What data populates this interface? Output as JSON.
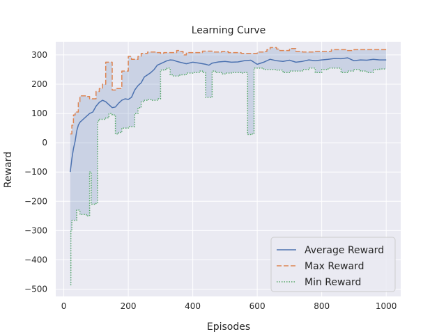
{
  "chart_data": {
    "type": "line",
    "title": "Learning Curve",
    "xlabel": "Episodes",
    "ylabel": "Reward",
    "xlim": [
      -25,
      1045
    ],
    "ylim": [
      -525,
      345
    ],
    "xticks": [
      0,
      200,
      400,
      600,
      800,
      1000
    ],
    "yticks": [
      -500,
      -400,
      -300,
      -200,
      -100,
      0,
      100,
      200,
      300
    ],
    "grid": true,
    "legend_position": "lower-right",
    "fill_between": {
      "series_low": "Min Reward",
      "series_high": "Max Reward",
      "color": "#4c72b0",
      "opacity": 0.2
    },
    "series": [
      {
        "name": "Average Reward",
        "color": "#4c72b0",
        "style": "solid",
        "x": [
          20,
          25,
          30,
          35,
          40,
          45,
          50,
          60,
          70,
          80,
          90,
          100,
          110,
          120,
          130,
          140,
          150,
          160,
          170,
          180,
          190,
          200,
          210,
          220,
          230,
          240,
          250,
          260,
          270,
          280,
          290,
          300,
          310,
          320,
          330,
          340,
          350,
          360,
          380,
          400,
          420,
          440,
          450,
          460,
          480,
          500,
          520,
          540,
          560,
          580,
          600,
          620,
          640,
          660,
          680,
          700,
          720,
          740,
          760,
          780,
          800,
          820,
          840,
          860,
          880,
          900,
          920,
          940,
          960,
          980,
          1000
        ],
        "values": [
          -100,
          -55,
          -20,
          5,
          40,
          60,
          70,
          80,
          90,
          100,
          105,
          125,
          138,
          145,
          140,
          130,
          120,
          122,
          135,
          145,
          150,
          148,
          155,
          180,
          195,
          205,
          225,
          232,
          240,
          250,
          265,
          270,
          275,
          280,
          283,
          282,
          278,
          275,
          270,
          275,
          272,
          268,
          265,
          272,
          276,
          278,
          275,
          276,
          280,
          282,
          268,
          275,
          285,
          280,
          278,
          282,
          275,
          278,
          283,
          280,
          283,
          285,
          288,
          287,
          290,
          280,
          283,
          282,
          285,
          283,
          283
        ]
      },
      {
        "name": "Max Reward",
        "color": "#dd8452",
        "style": "dashed",
        "x": [
          20,
          25,
          30,
          35,
          45,
          50,
          70,
          80,
          100,
          110,
          120,
          130,
          150,
          160,
          180,
          200,
          210,
          230,
          240,
          260,
          290,
          300,
          310,
          350,
          360,
          370,
          380,
          430,
          460,
          490,
          510,
          550,
          580,
          600,
          620,
          630,
          640,
          660,
          670,
          700,
          720,
          740,
          780,
          830,
          880,
          900,
          960,
          1000
        ],
        "values": [
          30,
          60,
          95,
          105,
          140,
          160,
          158,
          150,
          175,
          185,
          200,
          275,
          180,
          185,
          245,
          295,
          285,
          295,
          305,
          310,
          308,
          305,
          308,
          315,
          312,
          300,
          308,
          313,
          310,
          312,
          308,
          305,
          305,
          310,
          312,
          318,
          325,
          320,
          315,
          322,
          312,
          310,
          312,
          318,
          315,
          318,
          318,
          314
        ]
      },
      {
        "name": "Min Reward",
        "color": "#55a868",
        "style": "dotted",
        "x": [
          20,
          22,
          25,
          30,
          40,
          45,
          50,
          55,
          60,
          70,
          80,
          85,
          90,
          100,
          105,
          110,
          130,
          140,
          150,
          160,
          170,
          180,
          200,
          220,
          230,
          240,
          250,
          260,
          270,
          290,
          300,
          310,
          320,
          330,
          340,
          350,
          360,
          380,
          400,
          420,
          430,
          440,
          450,
          460,
          470,
          490,
          500,
          520,
          540,
          550,
          560,
          570,
          575,
          580,
          590,
          600,
          620,
          640,
          660,
          680,
          700,
          720,
          740,
          760,
          780,
          800,
          820,
          840,
          860,
          880,
          900,
          920,
          940,
          960,
          980,
          1000
        ],
        "values": [
          -485,
          -300,
          -265,
          -265,
          -230,
          -230,
          -245,
          -245,
          -245,
          -250,
          -100,
          -210,
          -210,
          -205,
          75,
          80,
          85,
          100,
          95,
          30,
          35,
          50,
          55,
          100,
          120,
          140,
          145,
          148,
          145,
          150,
          248,
          250,
          255,
          232,
          228,
          228,
          232,
          238,
          240,
          245,
          240,
          155,
          155,
          245,
          240,
          235,
          238,
          240,
          240,
          238,
          240,
          28,
          28,
          30,
          255,
          255,
          250,
          250,
          248,
          240,
          245,
          245,
          250,
          255,
          240,
          250,
          255,
          255,
          240,
          245,
          250,
          245,
          240,
          250,
          252,
          252
        ]
      }
    ]
  }
}
